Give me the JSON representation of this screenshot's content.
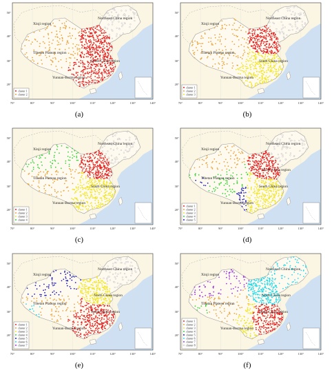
{
  "figure": {
    "x_ticks": [
      "70°",
      "80°",
      "90°",
      "100°",
      "110°",
      "120°",
      "130°",
      "140°"
    ],
    "y_ticks": [
      "20°",
      "30°",
      "40°",
      "50°"
    ],
    "colors": {
      "ocean": "#cfe0f2",
      "land": "#fbf6e4",
      "border": "#9a9a9a",
      "cluster_palette": [
        "#e52222",
        "#e8a640",
        "#f0e62c",
        "#3ad43a",
        "#1e1eb4",
        "#2bd9e8",
        "#9a38d8",
        "#ffffff"
      ]
    },
    "panels": [
      {
        "label": "(a)",
        "region_names": [
          "Xinji region",
          "Northeast China region",
          "Tibetan Plateau region",
          "South China region",
          "Yunnan-Burma region"
        ],
        "legend": [
          "cluster 1",
          "cluster 2"
        ]
      },
      {
        "label": "(b)",
        "region_names": [
          "Xinji region",
          "Northeast China region",
          "Tibetan Plateau region",
          "South China region",
          "Yunnan-Burma region"
        ],
        "legend": [
          "cluster 1",
          "cluster 2",
          "cluster 3"
        ]
      },
      {
        "label": "(c)",
        "region_names": [
          "Xinji region",
          "Northeast China region",
          "Tibetan Plateau region",
          "South China region",
          "Yunnan-Burma region"
        ],
        "legend": [
          "cluster 1",
          "cluster 2",
          "cluster 3",
          "cluster 4"
        ]
      },
      {
        "label": "(d)",
        "region_names": [
          "Xinji region",
          "Northeast China region",
          "Tibetan Plateau region",
          "North China region",
          "South China region",
          "Yunnan-Burma region"
        ],
        "legend": [
          "cluster 1",
          "cluster 2",
          "cluster 3",
          "cluster 4",
          "cluster 5"
        ]
      },
      {
        "label": "(e)",
        "region_names": [
          "Xinji region",
          "Northeast China region",
          "North China region",
          "Tibetan Plateau region",
          "South China region",
          "Yunnan-Burma region"
        ],
        "legend": [
          "cluster 1",
          "cluster 2",
          "cluster 3",
          "cluster 4",
          "cluster 5",
          "cluster 6",
          "cluster 7"
        ]
      },
      {
        "label": "(f)",
        "region_names": [
          "Xinji region",
          "Northeast China region",
          "North China region",
          "Tibetan Plateau region",
          "South China region",
          "Yunnan-Burma region"
        ],
        "legend": [
          "cluster 1",
          "cluster 2",
          "cluster 3",
          "cluster 4",
          "cluster 5",
          "cluster 6",
          "cluster 7",
          "cluster 8"
        ]
      }
    ]
  }
}
